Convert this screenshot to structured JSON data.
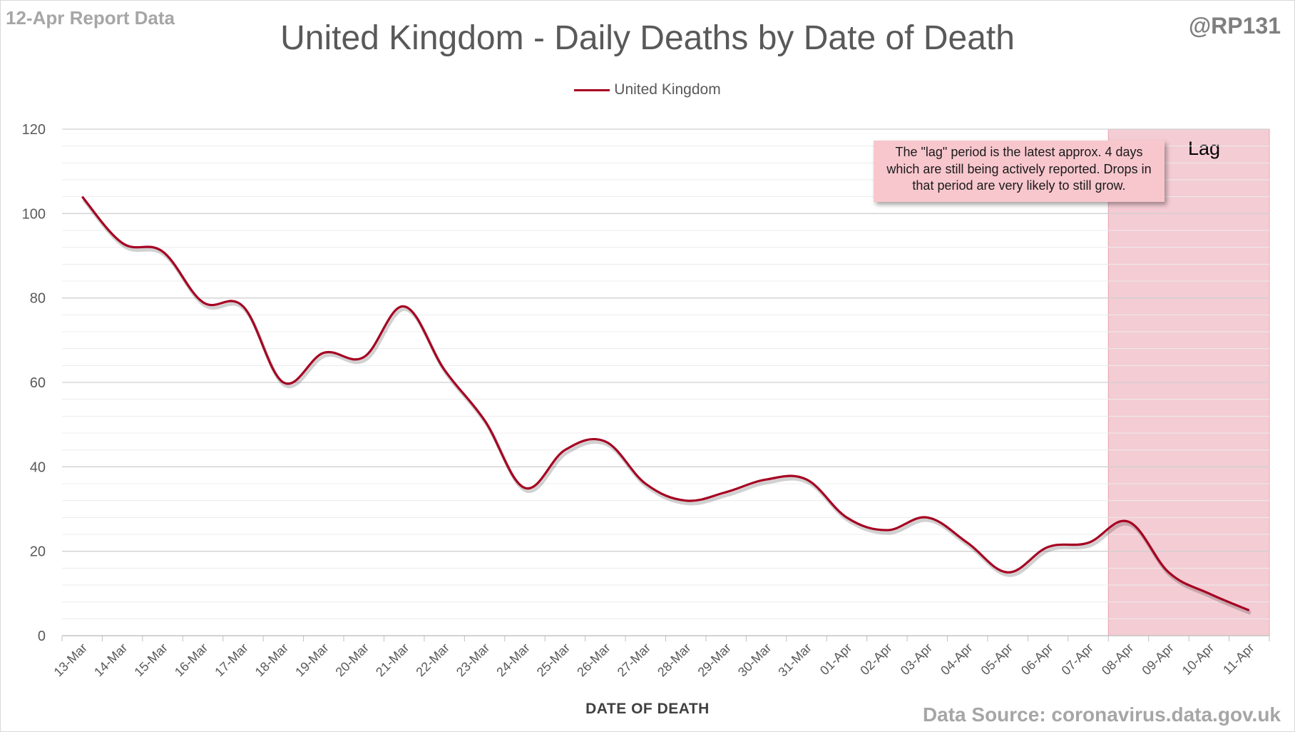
{
  "report_label": "12-Apr Report Data",
  "handle": "@RP131",
  "source": "Data Source: coronavirus.data.gov.uk",
  "note": "The \"lag\" period is the latest approx. 4 days which are still being actively reported. Drops in that period are very likely to still grow.",
  "lag_label": "Lag",
  "colors": {
    "line": "#a50021",
    "lag_band": "#f4ccd4",
    "grid": "#d9d9d9",
    "axis_text": "#595959"
  },
  "chart_data": {
    "type": "line",
    "title": "United Kingdom - Daily Deaths by Date of Death",
    "xlabel": "DATE OF DEATH",
    "ylabel": "",
    "ylim": [
      0,
      120
    ],
    "yticks": [
      0,
      20,
      40,
      60,
      80,
      100,
      120
    ],
    "grid": true,
    "legend_position": "top-center",
    "categories": [
      "13-Mar",
      "14-Mar",
      "15-Mar",
      "16-Mar",
      "17-Mar",
      "18-Mar",
      "19-Mar",
      "20-Mar",
      "21-Mar",
      "22-Mar",
      "23-Mar",
      "24-Mar",
      "25-Mar",
      "26-Mar",
      "27-Mar",
      "28-Mar",
      "29-Mar",
      "30-Mar",
      "31-Mar",
      "01-Apr",
      "02-Apr",
      "03-Apr",
      "04-Apr",
      "05-Apr",
      "06-Apr",
      "07-Apr",
      "08-Apr",
      "09-Apr",
      "10-Apr",
      "11-Apr"
    ],
    "series": [
      {
        "name": "United Kingdom",
        "values": [
          104,
          93,
          91,
          79,
          78,
          60,
          67,
          66,
          78,
          63,
          51,
          35,
          44,
          46,
          36,
          32,
          34,
          37,
          37,
          28,
          25,
          28,
          22,
          15,
          21,
          22,
          27,
          15,
          10,
          6
        ]
      }
    ],
    "lag_start": "08-Apr",
    "lag_end": "11-Apr"
  }
}
